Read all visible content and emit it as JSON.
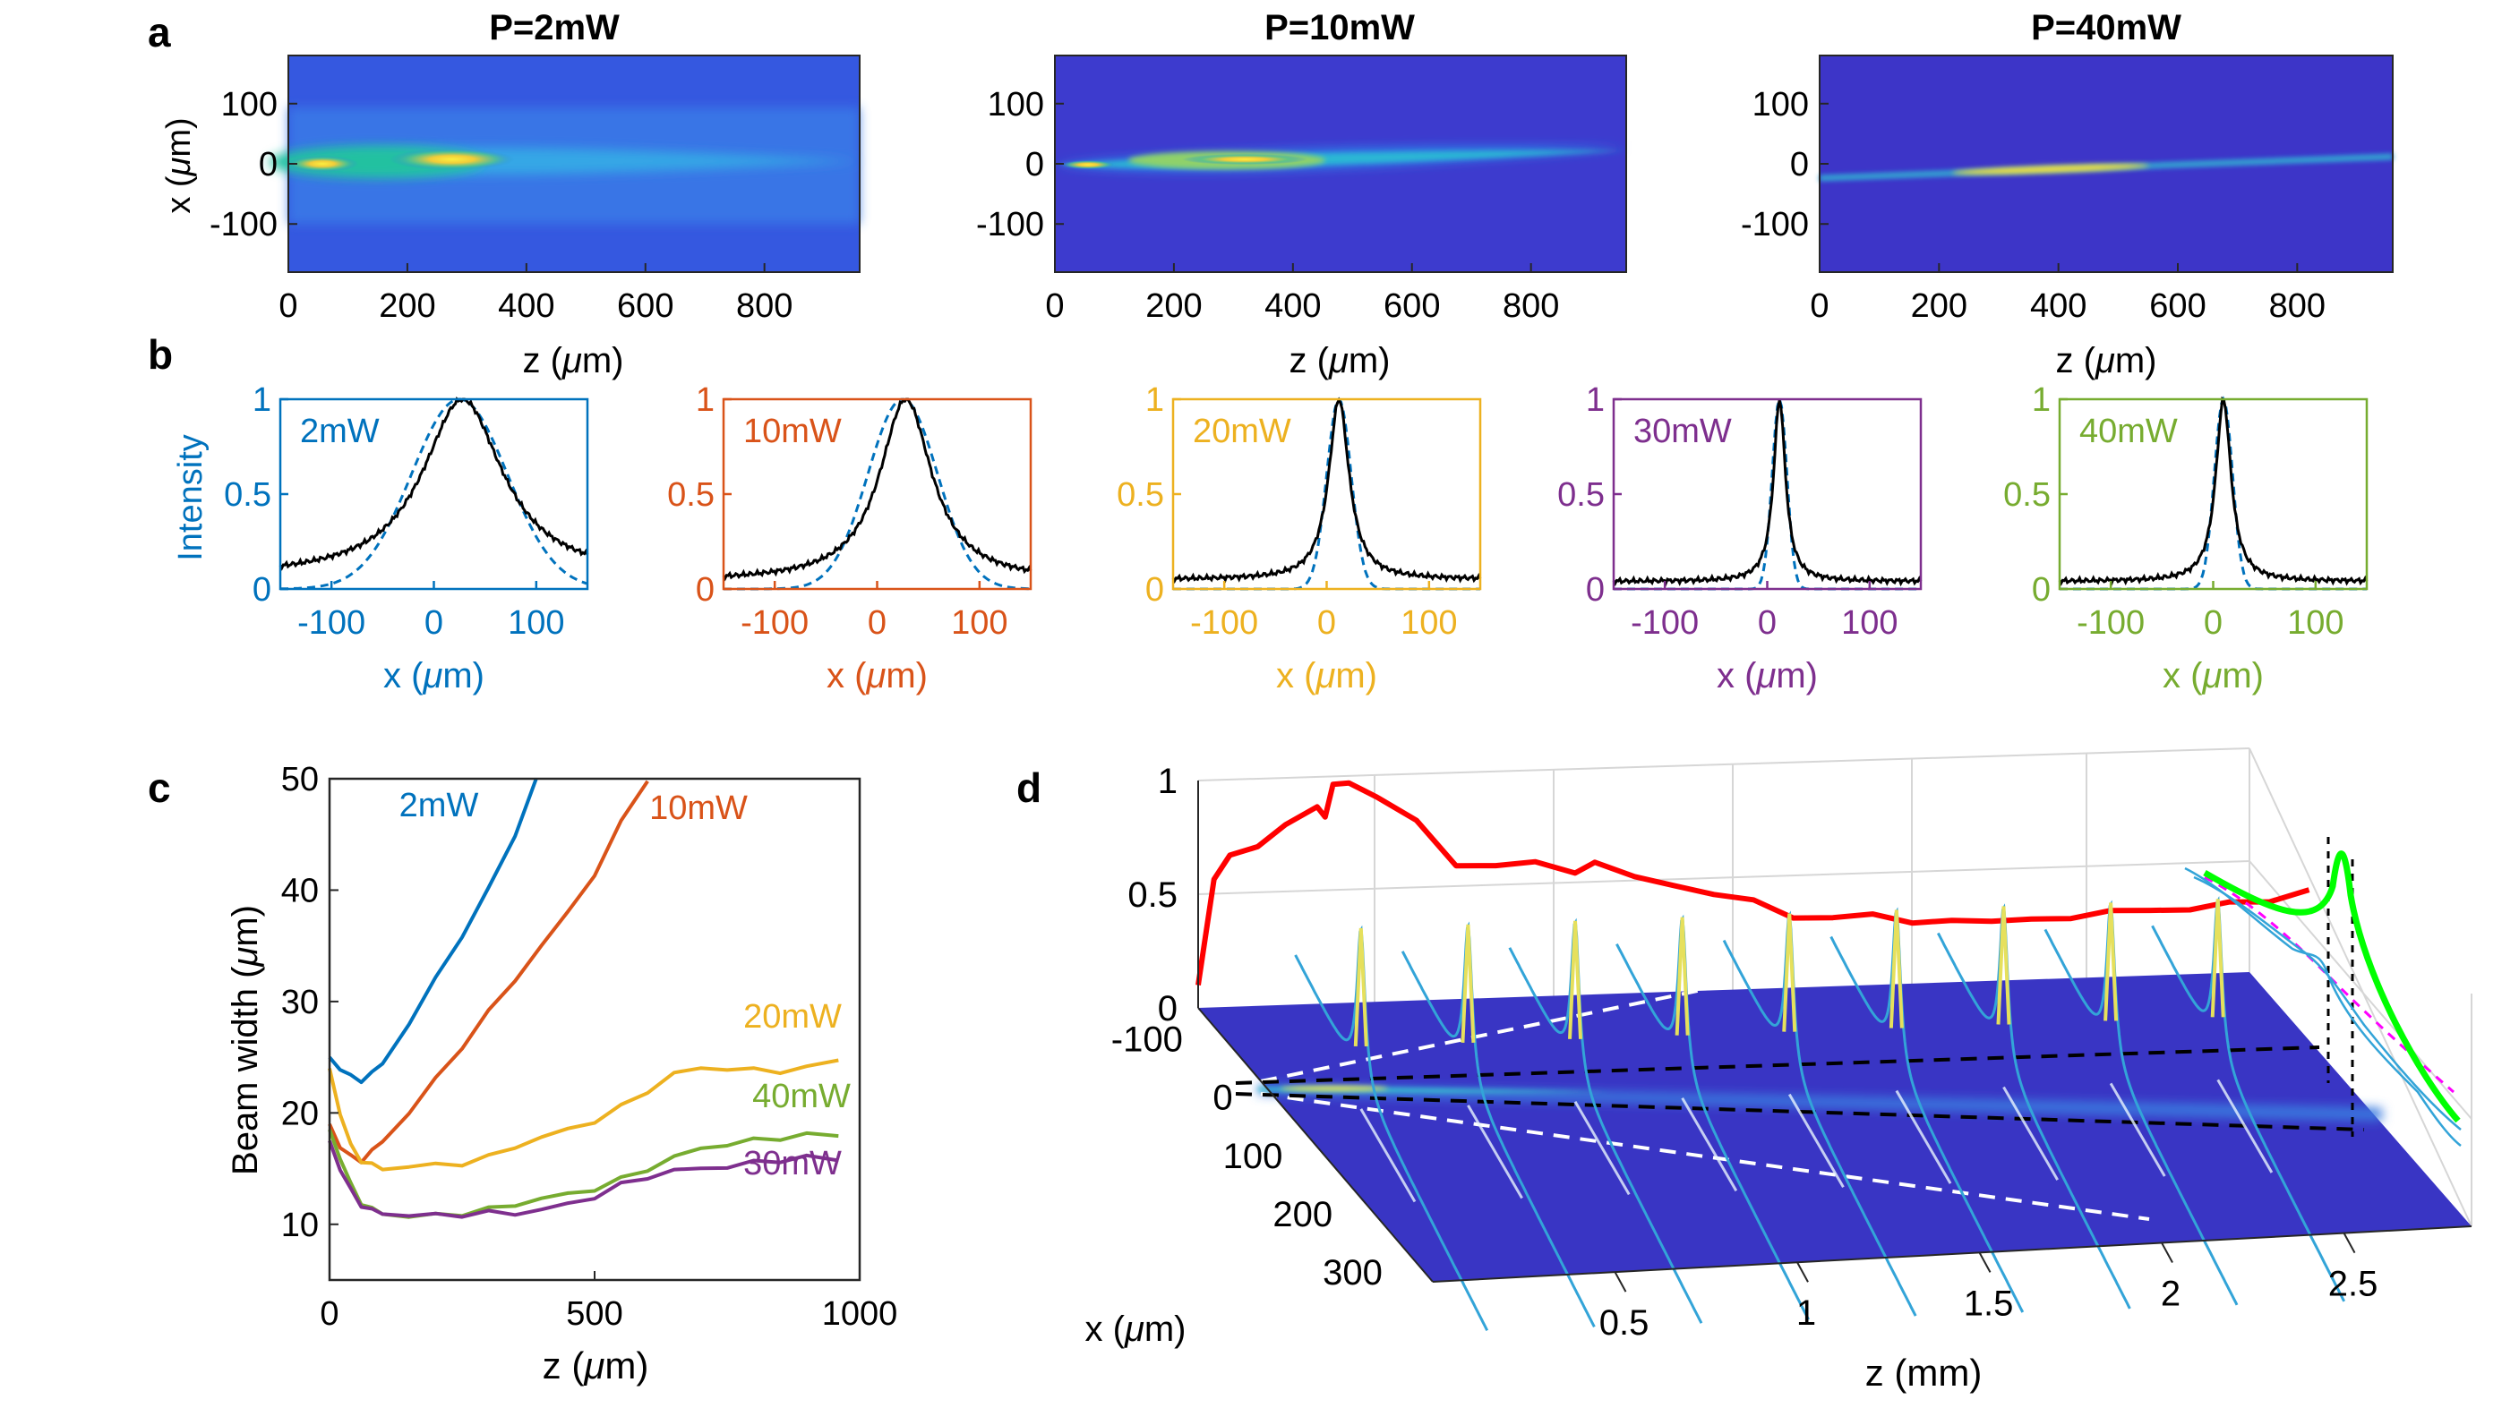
{
  "chart_data": [
    {
      "panel": "a",
      "type": "heatmap",
      "panel_label": "a",
      "colormap": "parula",
      "xlabel": "z (μm)",
      "ylabel": "x (μm)",
      "xlim": [
        0,
        960
      ],
      "ylim": [
        -180,
        180
      ],
      "xticks": [
        0,
        200,
        400,
        600,
        800
      ],
      "yticks": [
        100,
        0,
        -100
      ],
      "subplots": [
        {
          "title": "P=2mW",
          "power_mW": 2,
          "center_at_z0_um": 0,
          "drift_um_per_um": 0.0,
          "peak": [
            {
              "z": 40,
              "width_um": 30
            },
            {
              "z": 280,
              "width_um": 45
            }
          ]
        },
        {
          "title": "P=10mW",
          "power_mW": 10,
          "center_at_z0_um": -2,
          "drift_um_per_um": 0.005,
          "peak": [
            {
              "z": 30,
              "width_um": 18
            },
            {
              "z": 300,
              "width_um": 28
            }
          ]
        },
        {
          "title": "P=40mW",
          "power_mW": 40,
          "center_at_z0_um": -20,
          "drift_um_per_um": 0.037,
          "peak": [
            {
              "z": 380,
              "width_um": 10
            }
          ]
        }
      ]
    },
    {
      "panel": "b",
      "type": "line",
      "panel_label": "b",
      "xlabel": "x (μm)",
      "ylabel": "Intensity",
      "xlim": [
        -150,
        150
      ],
      "ylim": [
        0,
        1
      ],
      "xticks": [
        -100,
        0,
        100
      ],
      "yticks": [
        0,
        0.5,
        1
      ],
      "series": [
        {
          "name": "2mW",
          "color": "#0072BD",
          "measured": {
            "center": 28,
            "fwhm": 95,
            "baseline": 0.06
          },
          "gaussian_fit": {
            "center": 25,
            "fwhm": 110
          }
        },
        {
          "name": "10mW",
          "color": "#D95319",
          "measured": {
            "center": 28,
            "fwhm": 62,
            "baseline": 0.04
          },
          "gaussian_fit": {
            "center": 25,
            "fwhm": 80
          }
        },
        {
          "name": "20mW",
          "color": "#EDB120",
          "measured": {
            "center": 12,
            "fwhm": 24,
            "baseline": 0.05
          },
          "gaussian_fit": {
            "center": 12,
            "fwhm": 28
          }
        },
        {
          "name": "30mW",
          "color": "#7E2F8E",
          "measured": {
            "center": 12,
            "fwhm": 14,
            "baseline": 0.04
          },
          "gaussian_fit": {
            "center": 12,
            "fwhm": 17
          }
        },
        {
          "name": "40mW",
          "color": "#77AC30",
          "measured": {
            "center": 10,
            "fwhm": 18,
            "baseline": 0.04
          },
          "gaussian_fit": {
            "center": 10,
            "fwhm": 21
          }
        }
      ]
    },
    {
      "panel": "c",
      "type": "line",
      "panel_label": "c",
      "xlabel": "z (μm)",
      "ylabel": "Beam width (μm)",
      "xlim": [
        0,
        1000
      ],
      "ylim": [
        5,
        50
      ],
      "xticks": [
        0,
        500,
        1000
      ],
      "yticks": [
        10,
        20,
        30,
        40,
        50
      ],
      "series": [
        {
          "name": "2mW",
          "color": "#0072BD",
          "x": [
            0,
            20,
            40,
            60,
            80,
            100,
            150,
            200,
            250,
            300,
            350,
            390
          ],
          "y": [
            25,
            24,
            23.2,
            23,
            23.5,
            24.5,
            28,
            32,
            36,
            40,
            45,
            50
          ]
        },
        {
          "name": "10mW",
          "color": "#D95319",
          "x": [
            0,
            20,
            40,
            60,
            80,
            100,
            150,
            200,
            250,
            300,
            350,
            400,
            450,
            500,
            550,
            600
          ],
          "y": [
            19,
            17,
            16,
            15.8,
            16.5,
            17.5,
            20,
            23,
            26,
            29,
            32,
            35,
            38,
            41.5,
            46,
            50
          ]
        },
        {
          "name": "20mW",
          "color": "#EDB120",
          "x": [
            0,
            20,
            40,
            60,
            80,
            100,
            150,
            200,
            250,
            300,
            350,
            400,
            450,
            500,
            550,
            600,
            650,
            700,
            750,
            800,
            850,
            900,
            960
          ],
          "y": [
            24,
            20,
            17,
            15.8,
            15.3,
            15,
            15.2,
            15.3,
            15.5,
            16,
            17,
            17.8,
            18.5,
            19.3,
            20.5,
            22,
            23.5,
            24,
            24,
            23.8,
            23.8,
            24,
            24.8
          ]
        },
        {
          "name": "40mW",
          "color": "#77AC30",
          "x": [
            0,
            20,
            40,
            60,
            80,
            100,
            150,
            200,
            250,
            300,
            350,
            400,
            450,
            500,
            550,
            600,
            650,
            700,
            750,
            800,
            850,
            900,
            960
          ],
          "y": [
            18.5,
            16,
            13.5,
            12,
            11.3,
            11,
            10.7,
            10.8,
            11,
            11.3,
            11.8,
            12.3,
            12.7,
            13.2,
            14,
            15,
            16,
            16.8,
            17.2,
            17.5,
            17.8,
            18,
            18
          ]
        },
        {
          "name": "30mW",
          "color": "#7E2F8E",
          "x": [
            0,
            20,
            40,
            60,
            80,
            100,
            150,
            200,
            250,
            300,
            350,
            400,
            450,
            500,
            550,
            600,
            650,
            700,
            750,
            800,
            850,
            900,
            960
          ],
          "y": [
            17.5,
            15,
            13,
            11.8,
            11.2,
            11,
            10.8,
            10.8,
            10.9,
            11,
            11,
            11.3,
            11.8,
            12.5,
            13.5,
            14.3,
            14.8,
            15,
            15.2,
            15.5,
            15.8,
            16,
            15.8
          ]
        }
      ]
    },
    {
      "panel": "d",
      "type": "area",
      "panel_label": "d",
      "xlabel": "z (mm)",
      "ylabel": "x (μm)",
      "zaxis_ticks": [
        0,
        0.5,
        1
      ],
      "xticks": [
        0.5,
        1,
        1.5,
        2,
        2.5
      ],
      "yticks": [
        -100,
        0,
        100,
        200,
        300
      ],
      "xlim": [
        0,
        2.85
      ],
      "ylim": [
        -150,
        320
      ],
      "zlim": [
        0,
        1
      ],
      "peak_intensity": {
        "color": "#FF0000",
        "z_mm": [
          0,
          0.04,
          0.08,
          0.15,
          0.22,
          0.3,
          0.32,
          0.34,
          0.38,
          0.45,
          0.55,
          0.65,
          0.75,
          0.85,
          0.95,
          1.0,
          1.1,
          1.2,
          1.3,
          1.4,
          1.5,
          1.6,
          1.7,
          1.8,
          1.9,
          2.0,
          2.1,
          2.2,
          2.3,
          2.4,
          2.5,
          2.6,
          2.7,
          2.8
        ],
        "value": [
          0.1,
          0.55,
          0.68,
          0.7,
          0.78,
          0.88,
          0.82,
          0.95,
          0.98,
          0.9,
          0.78,
          0.6,
          0.58,
          0.58,
          0.55,
          0.58,
          0.5,
          0.48,
          0.42,
          0.38,
          0.32,
          0.3,
          0.3,
          0.28,
          0.27,
          0.25,
          0.28,
          0.26,
          0.28,
          0.3,
          0.28,
          0.3,
          0.32,
          0.35
        ]
      },
      "profiles_z_mm": [
        0.2,
        0.47,
        0.74,
        1.01,
        1.28,
        1.55,
        1.82,
        2.09,
        2.36
      ],
      "profile_width_um": 12,
      "beam_center_um": 10,
      "colors": {
        "surface": "#3a38c8",
        "beam": "#39c8cf",
        "beam_hot": "#e6e05c",
        "fit": "#00FF00",
        "fit_dash": "#FF00FF"
      }
    }
  ]
}
